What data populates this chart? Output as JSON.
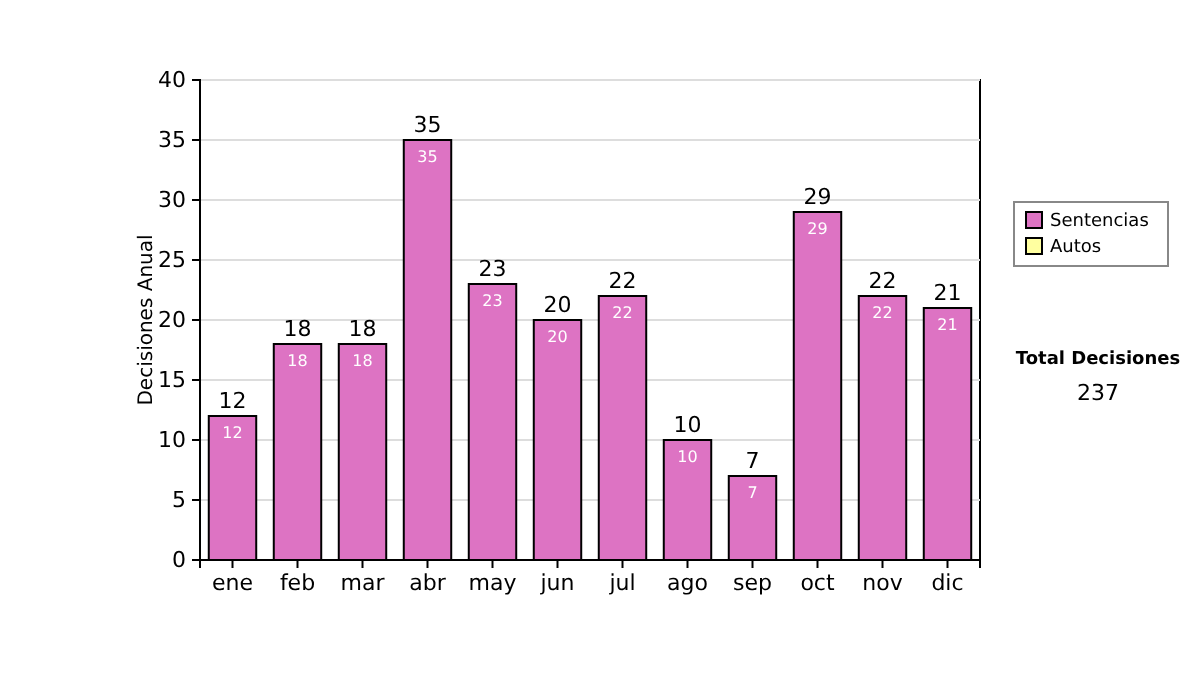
{
  "chart_data": {
    "type": "bar",
    "ylabel": "Decisiones Anual",
    "categories": [
      "ene",
      "feb",
      "mar",
      "abr",
      "may",
      "jun",
      "jul",
      "ago",
      "sep",
      "oct",
      "nov",
      "dic"
    ],
    "series": [
      {
        "name": "Sentencias",
        "color": "#dd73c3",
        "values": [
          12,
          18,
          18,
          35,
          23,
          20,
          22,
          10,
          7,
          29,
          22,
          21
        ],
        "value_labels": [
          "12",
          "18",
          "18",
          "35",
          "23",
          "20",
          "22",
          "10",
          "7",
          "29",
          "22",
          "21"
        ]
      },
      {
        "name": "Autos",
        "color": "#ffffa0",
        "values": [
          0,
          0,
          0,
          0,
          0,
          0,
          0,
          0,
          0,
          0,
          0,
          0
        ]
      }
    ],
    "stacked": true,
    "totals": [
      "12",
      "18",
      "18",
      "35",
      "23",
      "20",
      "22",
      "10",
      "7",
      "29",
      "22",
      "21"
    ],
    "ylim": [
      0,
      40
    ],
    "yticks": [
      0,
      5,
      10,
      15,
      20,
      25,
      30,
      35,
      40
    ],
    "grid": "y",
    "legend": "right",
    "annotations": [
      "Total Decisiones",
      "237"
    ]
  }
}
